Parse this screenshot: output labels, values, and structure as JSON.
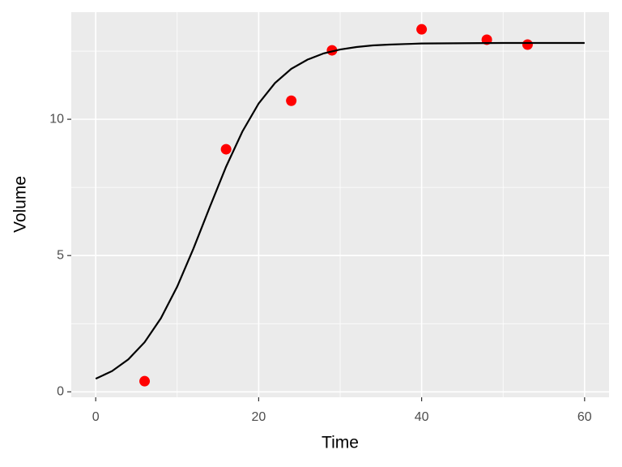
{
  "chart_data": {
    "type": "scatter",
    "x_label": "Time",
    "y_label": "Volume",
    "xlim": [
      -3,
      63
    ],
    "ylim": [
      -0.2,
      13.93
    ],
    "xticks": [
      0,
      20,
      40,
      60
    ],
    "yticks": [
      0,
      5,
      10
    ],
    "x_minor_grid": [
      10,
      30,
      50
    ],
    "y_minor_grid": [
      2.5,
      7.5,
      12.5
    ],
    "grid": true,
    "background": "#ebebeb",
    "series": [
      {
        "mode": "points",
        "color": "#ff0000",
        "x": [
          6,
          16,
          24,
          29,
          40,
          48,
          53
        ],
        "values": [
          0.39,
          8.9,
          10.68,
          12.53,
          13.3,
          12.92,
          12.74
        ]
      },
      {
        "mode": "line",
        "color": "#000000",
        "x": [
          0,
          2,
          4,
          6,
          8,
          10,
          12,
          14,
          16,
          18,
          20,
          22,
          24,
          26,
          28,
          30,
          32,
          34,
          36,
          38,
          40,
          50,
          60
        ],
        "values": [
          0.48,
          0.76,
          1.19,
          1.82,
          2.7,
          3.86,
          5.26,
          6.78,
          8.26,
          9.55,
          10.58,
          11.33,
          11.85,
          12.19,
          12.42,
          12.56,
          12.65,
          12.71,
          12.74,
          12.76,
          12.78,
          12.8,
          12.8
        ]
      }
    ]
  }
}
